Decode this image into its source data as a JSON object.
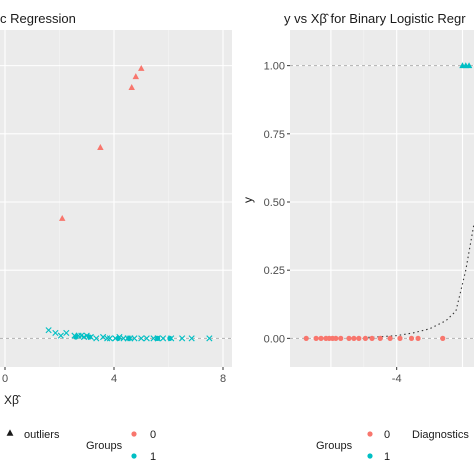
{
  "colors": {
    "group0": "#F8766D",
    "group1": "#00BFC4",
    "panel": "#EBEBEB"
  },
  "chart_data": [
    {
      "type": "scatter",
      "title": "c Regression",
      "xlabel": "Xβ̂",
      "ylabel": "",
      "xlim": [
        0,
        8
      ],
      "ylim": [
        -0.05,
        1.05
      ],
      "xticks": [
        {
          "v": 0,
          "label": "0"
        },
        {
          "v": 4,
          "label": "4"
        },
        {
          "v": 8,
          "label": "8"
        }
      ],
      "series": [
        {
          "group": "1",
          "marker": "cross",
          "x": [
            1.6,
            1.85,
            2.05,
            2.25,
            2.55,
            2.7,
            2.8,
            2.9,
            3.0,
            3.15,
            3.35,
            3.6,
            3.75,
            3.85,
            4.05,
            4.2,
            4.35,
            4.5,
            4.6,
            4.75,
            5.0,
            5.2,
            5.45,
            5.6,
            5.8,
            6.1,
            6.5,
            6.85,
            7.5
          ],
          "y": [
            0.03,
            0.02,
            0.01,
            0.02,
            0.01,
            0.01,
            0.01,
            0.005,
            0.01,
            0.005,
            0.0,
            0.005,
            0.0,
            0.0,
            0.0,
            0.005,
            0.0,
            0.0,
            0.0,
            0.0,
            0.0,
            0.0,
            0.0,
            0.0,
            0.0,
            0.0,
            0.0,
            0.0,
            0.0
          ]
        },
        {
          "group": "1",
          "marker": "circle",
          "x": [
            2.6,
            3.1,
            4.15,
            4.55,
            5.6,
            6.05
          ],
          "y": [
            0.005,
            0.005,
            0.0,
            0.0,
            0.0,
            0.0
          ]
        },
        {
          "group": "0",
          "marker": "triangle",
          "x": [
            2.1,
            3.5,
            4.65,
            4.8,
            5.0
          ],
          "y": [
            0.44,
            0.7,
            0.92,
            0.96,
            0.99
          ]
        }
      ]
    },
    {
      "type": "scatter",
      "title": "y vs Xβ̂ for Binary Logistic Regr",
      "xlabel": "",
      "ylabel": "y",
      "xlim": [
        -7.0,
        -1.65
      ],
      "ylim": [
        -0.05,
        1.05
      ],
      "xticks": [
        {
          "v": -4,
          "label": "-4"
        }
      ],
      "yticks": [
        {
          "v": 0.0,
          "label": "0.00"
        },
        {
          "v": 0.25,
          "label": "0.25"
        },
        {
          "v": 0.5,
          "label": "0.50"
        },
        {
          "v": 0.75,
          "label": "0.75"
        },
        {
          "v": 1.0,
          "label": "1.00"
        }
      ],
      "series": [
        {
          "group": "0",
          "marker": "circle",
          "x": [
            -6.75,
            -6.45,
            -6.3,
            -6.15,
            -6.05,
            -5.95,
            -5.85,
            -5.7,
            -5.45,
            -5.3,
            -5.15,
            -4.95,
            -4.75,
            -4.5,
            -4.2,
            -3.9,
            -3.55,
            -3.35,
            -2.6
          ],
          "y": [
            0,
            0,
            0,
            0,
            0,
            0,
            0,
            0,
            0,
            0,
            0,
            0,
            0,
            0,
            0,
            0,
            0,
            0,
            0
          ]
        },
        {
          "group": "1",
          "marker": "triangle",
          "x": [
            -2.0,
            -1.9,
            -1.8
          ],
          "y": [
            1,
            1,
            1
          ]
        },
        {
          "name": "fitted",
          "type": "line",
          "style": "dotted",
          "x": [
            -5.0,
            -4.5,
            -4.0,
            -3.5,
            -3.0,
            -2.5,
            -2.2,
            -1.9,
            -1.65
          ],
          "y": [
            0.003,
            0.006,
            0.01,
            0.02,
            0.035,
            0.065,
            0.1,
            0.25,
            0.42
          ]
        }
      ]
    }
  ],
  "legend_left": {
    "shape_label": "outliers",
    "groups_title": "Groups",
    "entries": [
      {
        "label": "0"
      },
      {
        "label": "1"
      }
    ]
  },
  "legend_right": {
    "groups_title": "Groups",
    "entries": [
      {
        "label": "0"
      },
      {
        "label": "1"
      }
    ],
    "diagnostics_title": "Diagnostics"
  }
}
